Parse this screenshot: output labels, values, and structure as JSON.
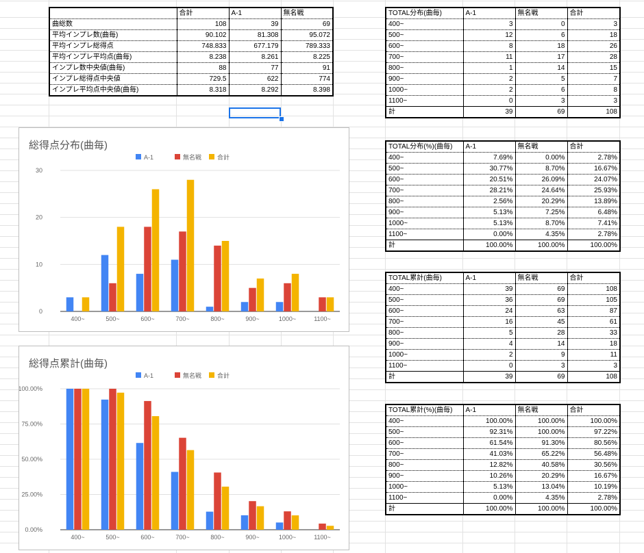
{
  "summary_table": {
    "headers": [
      "",
      "合計",
      "A-1",
      "無名戦"
    ],
    "rows": [
      [
        "曲総数",
        "108",
        "39",
        "69"
      ],
      [
        "平均インプレ数(曲毎)",
        "90.102",
        "81.308",
        "95.072"
      ],
      [
        "平均インプレ総得点",
        "748.833",
        "677.179",
        "789.333"
      ],
      [
        "平均インプレ平均点(曲毎)",
        "8.238",
        "8.261",
        "8.225"
      ],
      [
        "インプレ数中央値(曲毎)",
        "88",
        "77",
        "91"
      ],
      [
        "インプレ総得点中央値",
        "729.5",
        "622",
        "774"
      ],
      [
        "インプレ平均点中央値(曲毎)",
        "8.318",
        "8.292",
        "8.398"
      ]
    ]
  },
  "dist_table": {
    "headers": [
      "TOTAL分布(曲毎)",
      "A-1",
      "無名戦",
      "合計"
    ],
    "rows": [
      [
        "400~",
        "3",
        "0",
        "3"
      ],
      [
        "500~",
        "12",
        "6",
        "18"
      ],
      [
        "600~",
        "8",
        "18",
        "26"
      ],
      [
        "700~",
        "11",
        "17",
        "28"
      ],
      [
        "800~",
        "1",
        "14",
        "15"
      ],
      [
        "900~",
        "2",
        "5",
        "7"
      ],
      [
        "1000~",
        "2",
        "6",
        "8"
      ],
      [
        "1100~",
        "0",
        "3",
        "3"
      ],
      [
        "計",
        "39",
        "69",
        "108"
      ]
    ]
  },
  "dist_pct_table": {
    "headers": [
      "TOTAL分布(%)(曲毎)",
      "A-1",
      "無名戦",
      "合計"
    ],
    "rows": [
      [
        "400~",
        "7.69%",
        "0.00%",
        "2.78%"
      ],
      [
        "500~",
        "30.77%",
        "8.70%",
        "16.67%"
      ],
      [
        "600~",
        "20.51%",
        "26.09%",
        "24.07%"
      ],
      [
        "700~",
        "28.21%",
        "24.64%",
        "25.93%"
      ],
      [
        "800~",
        "2.56%",
        "20.29%",
        "13.89%"
      ],
      [
        "900~",
        "5.13%",
        "7.25%",
        "6.48%"
      ],
      [
        "1000~",
        "5.13%",
        "8.70%",
        "7.41%"
      ],
      [
        "1100~",
        "0.00%",
        "4.35%",
        "2.78%"
      ],
      [
        "計",
        "100.00%",
        "100.00%",
        "100.00%"
      ]
    ]
  },
  "cum_table": {
    "headers": [
      "TOTAL累計(曲毎)",
      "A-1",
      "無名戦",
      "合計"
    ],
    "rows": [
      [
        "400~",
        "39",
        "69",
        "108"
      ],
      [
        "500~",
        "36",
        "69",
        "105"
      ],
      [
        "600~",
        "24",
        "63",
        "87"
      ],
      [
        "700~",
        "16",
        "45",
        "61"
      ],
      [
        "800~",
        "5",
        "28",
        "33"
      ],
      [
        "900~",
        "4",
        "14",
        "18"
      ],
      [
        "1000~",
        "2",
        "9",
        "11"
      ],
      [
        "1100~",
        "0",
        "3",
        "3"
      ],
      [
        "計",
        "39",
        "69",
        "108"
      ]
    ]
  },
  "cum_pct_table": {
    "headers": [
      "TOTAL累計(%)(曲毎)",
      "A-1",
      "無名戦",
      "合計"
    ],
    "rows": [
      [
        "400~",
        "100.00%",
        "100.00%",
        "100.00%"
      ],
      [
        "500~",
        "92.31%",
        "100.00%",
        "97.22%"
      ],
      [
        "600~",
        "61.54%",
        "91.30%",
        "80.56%"
      ],
      [
        "700~",
        "41.03%",
        "65.22%",
        "56.48%"
      ],
      [
        "800~",
        "12.82%",
        "40.58%",
        "30.56%"
      ],
      [
        "900~",
        "10.26%",
        "20.29%",
        "16.67%"
      ],
      [
        "1000~",
        "5.13%",
        "13.04%",
        "10.19%"
      ],
      [
        "1100~",
        "0.00%",
        "4.35%",
        "2.78%"
      ],
      [
        "計",
        "100.00%",
        "100.00%",
        "100.00%"
      ]
    ]
  },
  "colors": {
    "a1": "#4285f4",
    "mumei": "#db4437",
    "total": "#f4b400",
    "grid": "#e0e0e0",
    "axis": "#666666"
  },
  "chart_data": [
    {
      "type": "bar",
      "title": "総得点分布(曲毎)",
      "categories": [
        "400~",
        "500~",
        "600~",
        "700~",
        "800~",
        "900~",
        "1000~",
        "1100~"
      ],
      "series": [
        {
          "name": "A-1",
          "values": [
            3,
            12,
            8,
            11,
            1,
            2,
            2,
            0
          ]
        },
        {
          "name": "無名戦",
          "values": [
            0,
            6,
            18,
            17,
            14,
            5,
            6,
            3
          ]
        },
        {
          "name": "合計",
          "values": [
            3,
            18,
            26,
            28,
            15,
            7,
            8,
            3
          ]
        }
      ],
      "ylim": [
        0,
        30
      ],
      "yticks": [
        "0",
        "10",
        "20",
        "30"
      ],
      "legend": "top",
      "grid": true
    },
    {
      "type": "bar",
      "title": "総得点累計(曲毎)",
      "categories": [
        "400~",
        "500~",
        "600~",
        "700~",
        "800~",
        "900~",
        "1000~",
        "1100~"
      ],
      "series": [
        {
          "name": "A-1",
          "values": [
            1.0,
            0.9231,
            0.6154,
            0.4103,
            0.1282,
            0.1026,
            0.0513,
            0.0
          ]
        },
        {
          "name": "無名戦",
          "values": [
            1.0,
            1.0,
            0.913,
            0.6522,
            0.4058,
            0.2029,
            0.1304,
            0.0435
          ]
        },
        {
          "name": "合計",
          "values": [
            1.0,
            0.9722,
            0.8056,
            0.5648,
            0.3056,
            0.1667,
            0.1019,
            0.0278
          ]
        }
      ],
      "ylim": [
        0,
        1
      ],
      "yticks": [
        "0.00%",
        "25.00%",
        "50.00%",
        "75.00%",
        "100.00%"
      ],
      "legend": "top",
      "grid": true
    }
  ]
}
